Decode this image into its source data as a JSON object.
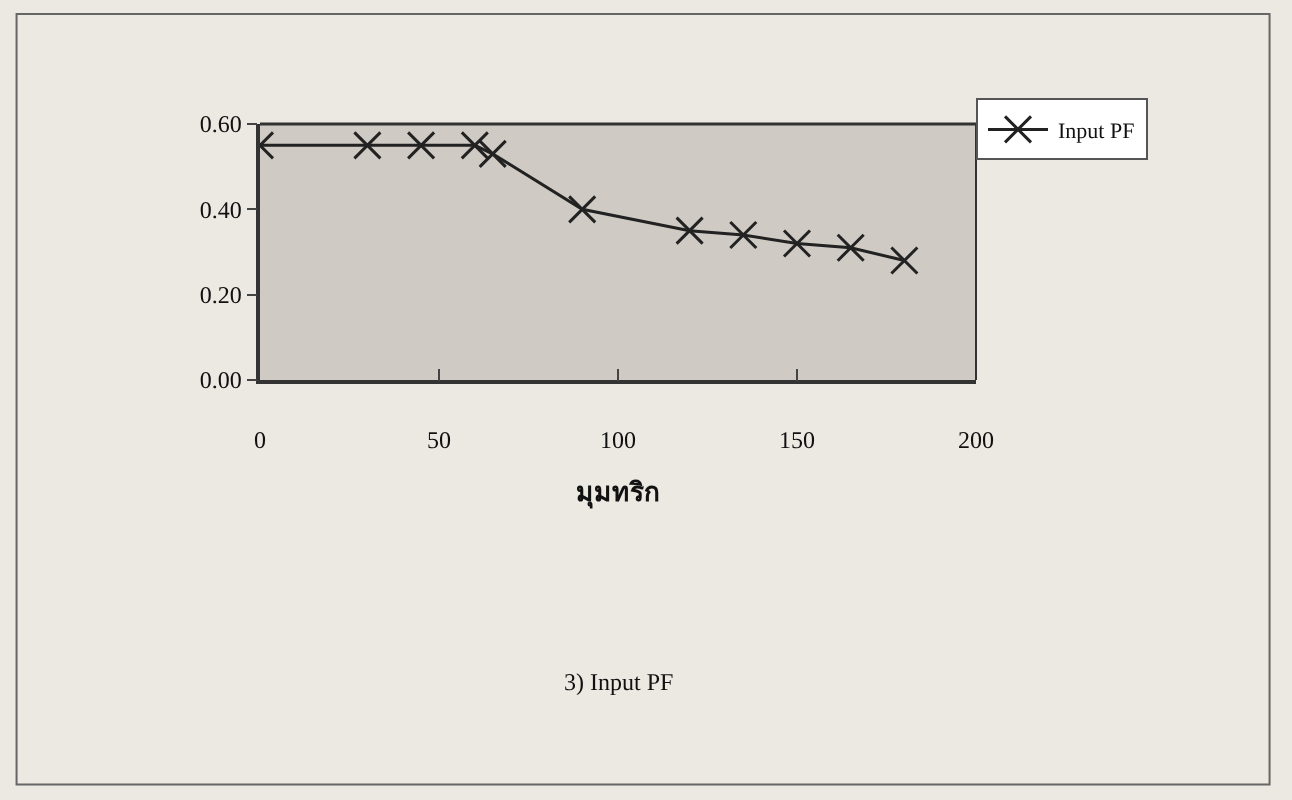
{
  "chart_data": {
    "type": "line",
    "xlabel": "มุมทริก",
    "annotations": [
      "3) Input PF"
    ],
    "x": [
      0,
      30,
      45,
      60,
      65,
      90,
      120,
      135,
      150,
      165,
      180
    ],
    "series": [
      {
        "name": "Input PF",
        "color": "#222222",
        "values": [
          0.55,
          0.55,
          0.55,
          0.55,
          0.53,
          0.4,
          0.35,
          0.34,
          0.32,
          0.31,
          0.28
        ]
      }
    ],
    "xlim": [
      0,
      200
    ],
    "xticks": [
      0,
      50,
      100,
      150,
      200
    ],
    "ylim": [
      0,
      0.6
    ],
    "yticks": [
      {
        "value": 0,
        "label": "0.00"
      },
      {
        "value": 0.2,
        "label": "0.20"
      },
      {
        "value": 0.4,
        "label": "0.40"
      },
      {
        "value": 0.6,
        "label": "0.60"
      }
    ],
    "grid": false,
    "legend": "top right",
    "marker": "cross",
    "line_style": "solid"
  }
}
